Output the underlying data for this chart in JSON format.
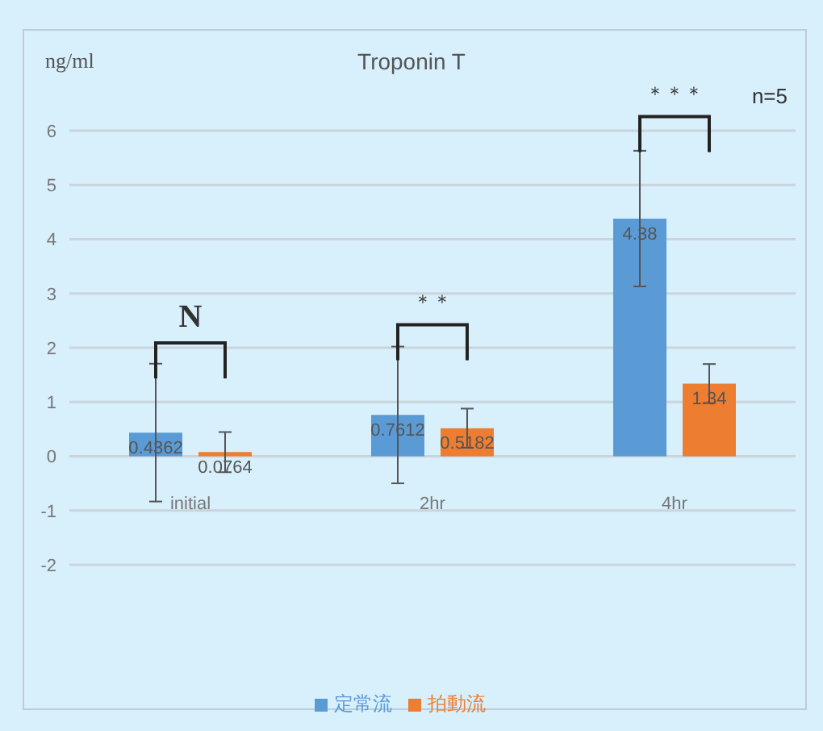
{
  "chart_data": {
    "type": "bar",
    "title": "Troponin  T",
    "ylabel": "ng/ml",
    "categories": [
      "initial",
      "2hr",
      "4hr"
    ],
    "series": [
      {
        "name": "定常流",
        "color": "#5b9bd5",
        "values": [
          0.4362,
          0.7612,
          4.38
        ],
        "errors": [
          1.27,
          1.26,
          1.25
        ]
      },
      {
        "name": "拍動流",
        "color": "#ed7d31",
        "values": [
          0.0764,
          0.5182,
          1.34
        ],
        "errors": [
          0.37,
          0.36,
          0.36
        ]
      }
    ],
    "ylim": [
      -2,
      6
    ],
    "yticks": [
      -2,
      -1,
      0,
      1,
      2,
      3,
      4,
      5,
      6
    ],
    "grid": "y",
    "legend": "bottom",
    "data_labels": true,
    "annotations": [
      "N",
      "＊＊",
      "＊＊＊",
      "n=5"
    ]
  }
}
